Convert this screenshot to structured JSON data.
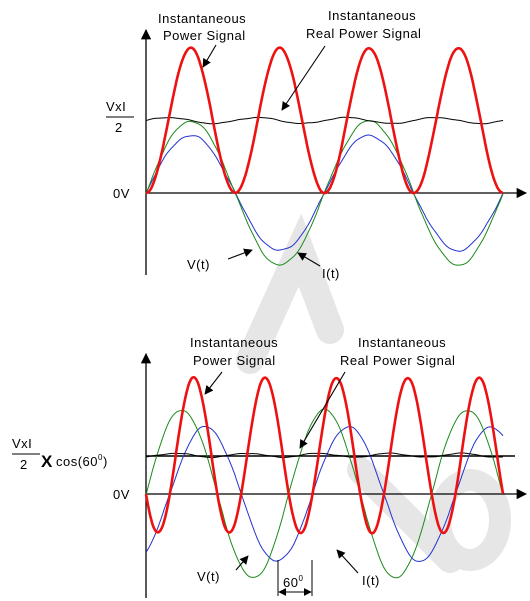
{
  "colors": {
    "power": "#ee1111",
    "voltage": "#1a8a1a",
    "current": "#2233cc",
    "real_power": "#000000",
    "axis": "#000000",
    "watermark": "#dddddd"
  },
  "diagram_top": {
    "label_power": [
      "Instantaneous",
      "Power Signal"
    ],
    "label_real": [
      "Instantaneous",
      "Real Power Signal"
    ],
    "label_vxi_num": "VxI",
    "label_vxi_den": "2",
    "label_zero": "0V",
    "label_v": "V(t)",
    "label_i": "I(t)",
    "phase_deg": 0,
    "voltage_amplitude": 1.0,
    "current_amplitude": 0.8,
    "cycles": 2
  },
  "diagram_bottom": {
    "label_power": [
      "Instantaneous",
      "Power Signal"
    ],
    "label_real": [
      "Instantaneous",
      "Real Power Signal"
    ],
    "label_vxi_num": "VxI",
    "label_vxi_den": "2",
    "label_cos_x": "X",
    "label_cos": "cos(60",
    "label_cos_exp": "0",
    "label_cos_close": ")",
    "label_zero": "0V",
    "label_v": "V(t)",
    "label_i": "I(t)",
    "label_phase": "60",
    "label_phase_exp": "0",
    "phase_deg": 60,
    "voltage_amplitude": 1.0,
    "current_amplitude": 0.8,
    "cycles": 2.5
  }
}
